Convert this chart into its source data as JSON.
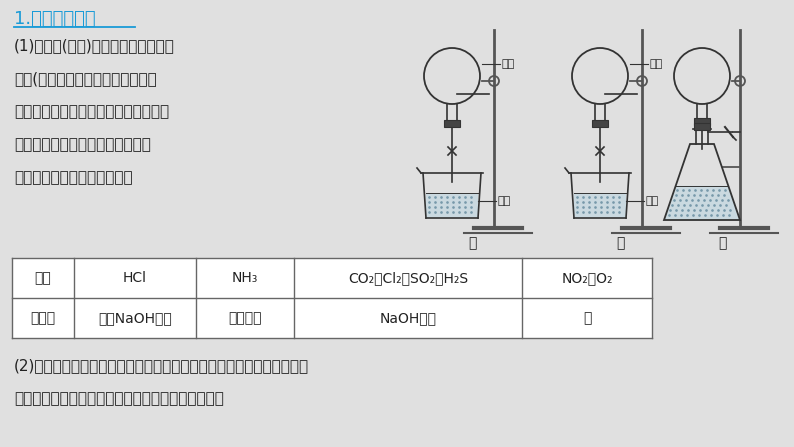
{
  "bg_color": "#e0e0e0",
  "title": "1.喷泉实验原理",
  "title_color": "#1a9bd7",
  "text_color": "#222222",
  "body_text1_lines": [
    "(1)如图甲(或乙)烧瓶内的气体极易溶",
    "于水(或易与溶液中的溶质发生化学",
    "反应），从而使烧瓶内气压迅速降低，",
    "在大气压作用下，烧杯中的液体迅",
    "速向上流动，从而形成喷泉。"
  ],
  "body_text2_lines": [
    "(2)如图丙锥形瓶内发生化学反应，产生气体，从而使锥形瓶内压强迅速",
    "增大，促使锥形瓶内液体迅速向上流动，形成喷泉。"
  ],
  "table_header": [
    "气体",
    "HCl",
    "NH₃",
    "CO₂、Cl₂、SO₂、H₂S",
    "NO₂与O₂"
  ],
  "table_row": [
    "吸收剂",
    "水或NaOH溶液",
    "水或盐酸",
    "NaOH溶液",
    "水"
  ],
  "table_bg": "#ffffff",
  "table_border_color": "#666666",
  "apparatus_labels": [
    "甲",
    "乙",
    "丙"
  ],
  "qiti": "气体",
  "yeti": "液体",
  "line_color": "#333333",
  "stand_color": "#555555",
  "liquid_color": "#c5d8e0",
  "stopper_color": "#444444"
}
